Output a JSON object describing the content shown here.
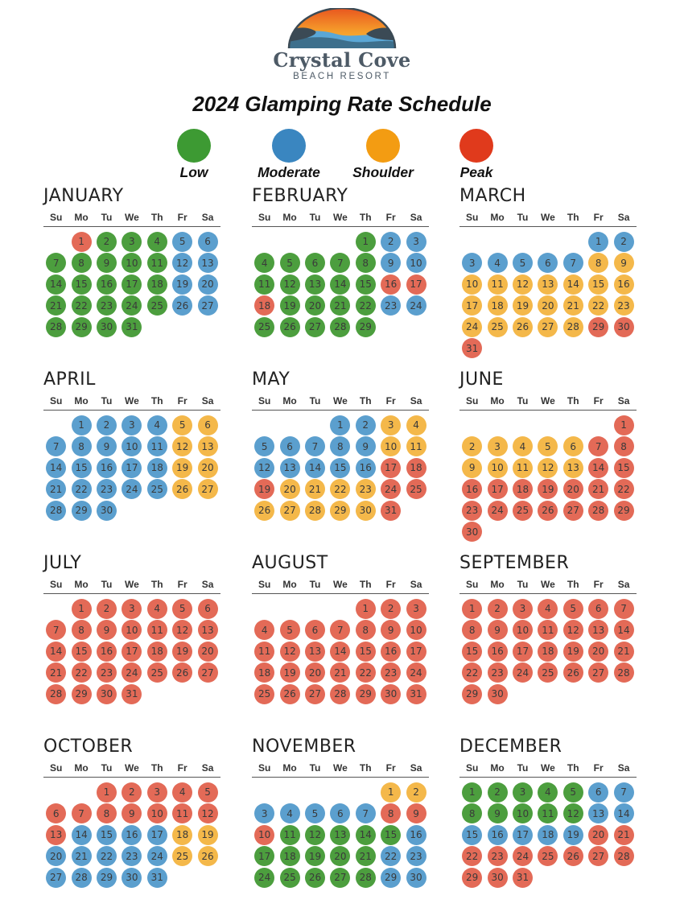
{
  "header": {
    "logo_name": "Crystal Cove",
    "logo_subtitle": "BEACH RESORT",
    "title": "2024 Glamping Rate Schedule"
  },
  "colors": {
    "L": "#4c9e3e",
    "M": "#5b9fce",
    "S": "#f4b84a",
    "P": "#e36a57"
  },
  "legend": [
    {
      "key": "L",
      "label": "Low",
      "color": "#3d9a33"
    },
    {
      "key": "M",
      "label": "Moderate",
      "color": "#3a86c0"
    },
    {
      "key": "S",
      "label": "Shoulder",
      "color": "#f39c12"
    },
    {
      "key": "P",
      "label": "Peak",
      "color": "#e03a1c"
    }
  ],
  "weekdays": [
    "Su",
    "Mo",
    "Tu",
    "We",
    "Th",
    "Fr",
    "Sa"
  ],
  "months": [
    {
      "name": "JANUARY",
      "start": 1,
      "days": 31,
      "ranges": [
        [
          1,
          1,
          "P"
        ],
        [
          2,
          4,
          "L"
        ],
        [
          5,
          6,
          "M"
        ],
        [
          7,
          11,
          "L"
        ],
        [
          12,
          13,
          "M"
        ],
        [
          14,
          18,
          "L"
        ],
        [
          19,
          20,
          "M"
        ],
        [
          21,
          25,
          "L"
        ],
        [
          26,
          27,
          "M"
        ],
        [
          28,
          31,
          "L"
        ]
      ]
    },
    {
      "name": "FEBRUARY",
      "start": 4,
      "days": 29,
      "ranges": [
        [
          1,
          1,
          "L"
        ],
        [
          2,
          3,
          "M"
        ],
        [
          4,
          8,
          "L"
        ],
        [
          9,
          10,
          "M"
        ],
        [
          11,
          15,
          "L"
        ],
        [
          16,
          18,
          "P"
        ],
        [
          19,
          22,
          "L"
        ],
        [
          23,
          24,
          "M"
        ],
        [
          25,
          29,
          "L"
        ]
      ]
    },
    {
      "name": "MARCH",
      "start": 5,
      "days": 31,
      "ranges": [
        [
          1,
          7,
          "M"
        ],
        [
          8,
          28,
          "S"
        ],
        [
          29,
          31,
          "P"
        ]
      ]
    },
    {
      "name": "APRIL",
      "start": 1,
      "days": 30,
      "ranges": [
        [
          1,
          4,
          "M"
        ],
        [
          5,
          6,
          "S"
        ],
        [
          7,
          11,
          "M"
        ],
        [
          12,
          13,
          "S"
        ],
        [
          14,
          18,
          "M"
        ],
        [
          19,
          20,
          "S"
        ],
        [
          21,
          25,
          "M"
        ],
        [
          26,
          27,
          "S"
        ],
        [
          28,
          30,
          "M"
        ]
      ]
    },
    {
      "name": "MAY",
      "start": 3,
      "days": 31,
      "ranges": [
        [
          1,
          2,
          "M"
        ],
        [
          3,
          4,
          "S"
        ],
        [
          5,
          9,
          "M"
        ],
        [
          10,
          11,
          "S"
        ],
        [
          12,
          16,
          "M"
        ],
        [
          17,
          19,
          "P"
        ],
        [
          20,
          23,
          "S"
        ],
        [
          24,
          25,
          "P"
        ],
        [
          26,
          30,
          "S"
        ],
        [
          31,
          31,
          "P"
        ]
      ]
    },
    {
      "name": "JUNE",
      "start": 6,
      "days": 30,
      "ranges": [
        [
          1,
          1,
          "P"
        ],
        [
          2,
          6,
          "S"
        ],
        [
          7,
          8,
          "P"
        ],
        [
          9,
          13,
          "S"
        ],
        [
          14,
          30,
          "P"
        ]
      ]
    },
    {
      "name": "JULY",
      "start": 1,
      "days": 31,
      "ranges": [
        [
          1,
          31,
          "P"
        ]
      ]
    },
    {
      "name": "AUGUST",
      "start": 4,
      "days": 31,
      "ranges": [
        [
          1,
          31,
          "P"
        ]
      ]
    },
    {
      "name": "SEPTEMBER",
      "start": 0,
      "days": 30,
      "ranges": [
        [
          1,
          30,
          "P"
        ]
      ]
    },
    {
      "name": "OCTOBER",
      "start": 2,
      "days": 31,
      "ranges": [
        [
          1,
          13,
          "P"
        ],
        [
          14,
          17,
          "M"
        ],
        [
          18,
          19,
          "S"
        ],
        [
          20,
          24,
          "M"
        ],
        [
          25,
          26,
          "S"
        ],
        [
          27,
          31,
          "M"
        ]
      ]
    },
    {
      "name": "NOVEMBER",
      "start": 5,
      "days": 30,
      "ranges": [
        [
          1,
          2,
          "S"
        ],
        [
          3,
          7,
          "M"
        ],
        [
          8,
          10,
          "P"
        ],
        [
          11,
          15,
          "L"
        ],
        [
          16,
          16,
          "M"
        ],
        [
          17,
          21,
          "L"
        ],
        [
          22,
          23,
          "M"
        ],
        [
          24,
          28,
          "L"
        ],
        [
          29,
          30,
          "M"
        ]
      ]
    },
    {
      "name": "DECEMBER",
      "start": 0,
      "days": 31,
      "ranges": [
        [
          1,
          5,
          "L"
        ],
        [
          6,
          7,
          "M"
        ],
        [
          8,
          12,
          "L"
        ],
        [
          13,
          19,
          "M"
        ],
        [
          20,
          31,
          "P"
        ]
      ]
    }
  ]
}
